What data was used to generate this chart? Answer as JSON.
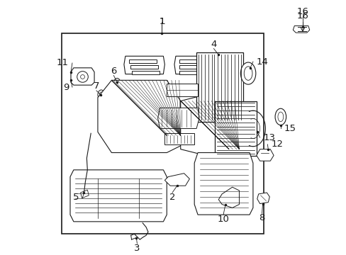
{
  "bg_color": "#ffffff",
  "line_color": "#1a1a1a",
  "fig_width": 4.89,
  "fig_height": 3.6,
  "dpi": 100,
  "font_size": 9.5
}
